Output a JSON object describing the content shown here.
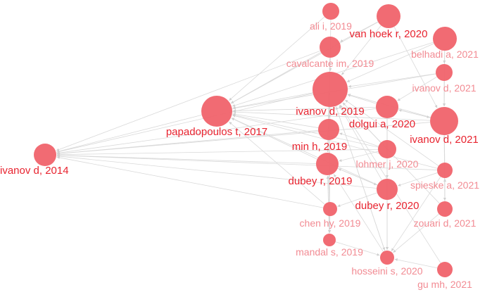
{
  "graph": {
    "node_color": "#f0636b",
    "edge_color": "#d9d9d9",
    "label_colors": {
      "strong": "#e8232f",
      "light": "#f28b93"
    },
    "nodes": [
      {
        "id": "ivanov2014",
        "label": "ivanov d, 2014",
        "weight": "strong"
      },
      {
        "id": "papadopoulos2017",
        "label": "papadopoulos t, 2017",
        "weight": "strong"
      },
      {
        "id": "ali2019",
        "label": "ali i, 2019",
        "weight": "light"
      },
      {
        "id": "vanhoek2020",
        "label": "van hoek r, 2020",
        "weight": "strong"
      },
      {
        "id": "belhadi2021",
        "label": "belhadi a, 2021",
        "weight": "light"
      },
      {
        "id": "cavalcante2019",
        "label": "cavalcante im, 2019",
        "weight": "light"
      },
      {
        "id": "ivanov2021a",
        "label": "ivanov d, 2021",
        "weight": "light"
      },
      {
        "id": "ivanov2019",
        "label": "ivanov d, 2019",
        "weight": "strong"
      },
      {
        "id": "dolgui2020",
        "label": "dolgui a, 2020",
        "weight": "strong"
      },
      {
        "id": "ivanov2021b",
        "label": "ivanov d, 2021",
        "weight": "strong"
      },
      {
        "id": "min2019",
        "label": "min h, 2019",
        "weight": "strong"
      },
      {
        "id": "lohmer2020",
        "label": "lohmer j, 2020",
        "weight": "light"
      },
      {
        "id": "dubey2019",
        "label": "dubey r, 2019",
        "weight": "strong"
      },
      {
        "id": "spieske2021",
        "label": "spieske a, 2021",
        "weight": "light"
      },
      {
        "id": "dubey2020",
        "label": "dubey r, 2020",
        "weight": "strong"
      },
      {
        "id": "chen2019",
        "label": "chen hy, 2019",
        "weight": "light"
      },
      {
        "id": "zouari2021",
        "label": "zouari d, 2021",
        "weight": "light"
      },
      {
        "id": "mandal2019",
        "label": "mandal s, 2019",
        "weight": "light"
      },
      {
        "id": "hosseini2020",
        "label": "hosseini s, 2020",
        "weight": "light"
      },
      {
        "id": "gu2021",
        "label": "gu mh, 2021",
        "weight": "light"
      }
    ],
    "edges": [
      [
        "papadopoulos2017",
        "ivanov2014"
      ],
      [
        "ivanov2019",
        "ivanov2014"
      ],
      [
        "min2019",
        "ivanov2014"
      ],
      [
        "dubey2019",
        "ivanov2014"
      ],
      [
        "cavalcante2019",
        "ivanov2014"
      ],
      [
        "ivanov2021b",
        "ivanov2014"
      ],
      [
        "dolgui2020",
        "ivanov2014"
      ],
      [
        "dubey2020",
        "ivanov2014"
      ],
      [
        "chen2019",
        "ivanov2014"
      ],
      [
        "lohmer2020",
        "ivanov2014"
      ],
      [
        "ali2019",
        "papadopoulos2017"
      ],
      [
        "cavalcante2019",
        "papadopoulos2017"
      ],
      [
        "ivanov2019",
        "papadopoulos2017"
      ],
      [
        "min2019",
        "papadopoulos2017"
      ],
      [
        "dubey2019",
        "papadopoulos2017"
      ],
      [
        "dolgui2020",
        "papadopoulos2017"
      ],
      [
        "ivanov2021b",
        "papadopoulos2017"
      ],
      [
        "ivanov2021a",
        "papadopoulos2017"
      ],
      [
        "belhadi2021",
        "papadopoulos2017"
      ],
      [
        "vanhoek2020",
        "papadopoulos2017"
      ],
      [
        "lohmer2020",
        "papadopoulos2017"
      ],
      [
        "dubey2020",
        "papadopoulos2017"
      ],
      [
        "spieske2021",
        "papadopoulos2017"
      ],
      [
        "chen2019",
        "papadopoulos2017"
      ],
      [
        "belhadi2021",
        "ivanov2019"
      ],
      [
        "vanhoek2020",
        "ivanov2019"
      ],
      [
        "ivanov2021a",
        "ivanov2019"
      ],
      [
        "dolgui2020",
        "ivanov2019"
      ],
      [
        "ivanov2021b",
        "ivanov2019"
      ],
      [
        "lohmer2020",
        "ivanov2019"
      ],
      [
        "dubey2020",
        "ivanov2019"
      ],
      [
        "spieske2021",
        "ivanov2019"
      ],
      [
        "zouari2021",
        "ivanov2019"
      ],
      [
        "hosseini2020",
        "ivanov2019"
      ],
      [
        "gu2021",
        "ivanov2019"
      ],
      [
        "belhadi2021",
        "ivanov2021b"
      ],
      [
        "ivanov2021a",
        "ivanov2021b"
      ],
      [
        "spieske2021",
        "ivanov2021b"
      ],
      [
        "zouari2021",
        "ivanov2021b"
      ],
      [
        "dolgui2020",
        "ivanov2021b"
      ],
      [
        "dubey2019",
        "dubey2020"
      ],
      [
        "min2019",
        "dubey2019"
      ],
      [
        "cavalcante2019",
        "dubey2019"
      ],
      [
        "lohmer2020",
        "dubey2019"
      ],
      [
        "dubey2020",
        "dubey2019"
      ],
      [
        "chen2019",
        "dubey2019"
      ],
      [
        "mandal2019",
        "dubey2019"
      ],
      [
        "hosseini2020",
        "dubey2019"
      ],
      [
        "mandal2019",
        "hosseini2020"
      ],
      [
        "chen2019",
        "mandal2019"
      ],
      [
        "dubey2020",
        "hosseini2020"
      ],
      [
        "dubey2020",
        "chen2019"
      ],
      [
        "spieske2021",
        "dubey2020"
      ],
      [
        "zouari2021",
        "hosseini2020"
      ],
      [
        "spieske2021",
        "hosseini2020"
      ],
      [
        "gu2021",
        "hosseini2020"
      ],
      [
        "lohmer2020",
        "hosseini2020"
      ],
      [
        "dolgui2020",
        "hosseini2020"
      ],
      [
        "ivanov2019",
        "hosseini2020"
      ],
      [
        "ivanov2019",
        "mandal2019"
      ],
      [
        "min2019",
        "mandal2019"
      ],
      [
        "dolgui2020",
        "dubey2020"
      ],
      [
        "cavalcante2019",
        "min2019"
      ],
      [
        "ivanov2019",
        "min2019"
      ],
      [
        "ivanov2019",
        "dubey2019"
      ],
      [
        "vanhoek2020",
        "cavalcante2019"
      ],
      [
        "belhadi2021",
        "ivanov2021a"
      ],
      [
        "ivanov2021a",
        "dolgui2020"
      ],
      [
        "ivanov2021b",
        "dolgui2020"
      ],
      [
        "zouari2021",
        "spieske2021"
      ],
      [
        "ivanov2021b",
        "zouari2021"
      ],
      [
        "ali2019",
        "ivanov2019"
      ],
      [
        "vanhoek2020",
        "ivanov2021b"
      ],
      [
        "lohmer2020",
        "min2019"
      ],
      [
        "spieske2021",
        "ivanov2014"
      ]
    ]
  }
}
